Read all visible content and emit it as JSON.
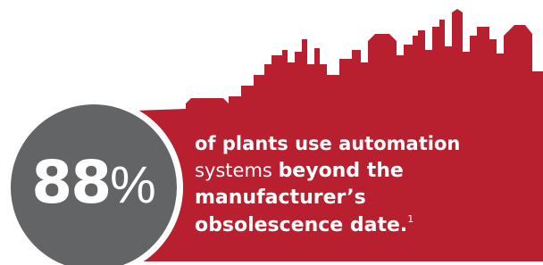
{
  "stat": {
    "number": "88",
    "unit": "%"
  },
  "statement": {
    "lead": [
      "of plants use automation",
      "systems"
    ],
    "emphasis": [
      "beyond the",
      "manufacturer’s",
      "obsolescence date."
    ],
    "footnote": "1"
  }
}
